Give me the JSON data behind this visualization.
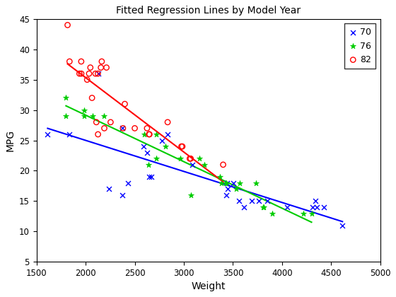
{
  "title": "Fitted Regression Lines by Model Year",
  "xlabel": "Weight",
  "ylabel": "MPG",
  "xlim": [
    1500,
    5000
  ],
  "ylim": [
    5,
    45
  ],
  "year70": {
    "weight": [
      1613,
      1835,
      2130,
      2234,
      2372,
      2375,
      2430,
      2587,
      2625,
      2648,
      2672,
      2774,
      2833,
      3086,
      3433,
      3436,
      3449,
      3504,
      3563,
      3609,
      3693,
      3761,
      3850,
      4054,
      4312,
      4341,
      4354,
      4425,
      4615
    ],
    "mpg": [
      26,
      26,
      36,
      17,
      27,
      16,
      18,
      24,
      23,
      19,
      19,
      25,
      26,
      21,
      16,
      18,
      17,
      18,
      15,
      14,
      15,
      15,
      15,
      14,
      14,
      15,
      14,
      14,
      11
    ],
    "color": "#0000FF",
    "marker": "x",
    "label": "70"
  },
  "year76": {
    "weight": [
      1800,
      1800,
      1985,
      1985,
      2070,
      2190,
      2600,
      2640,
      2720,
      2720,
      2815,
      2965,
      3070,
      3155,
      3210,
      3365,
      3380,
      3425,
      3430,
      3535,
      3570,
      3735,
      3810,
      3815,
      3900,
      4220,
      4300
    ],
    "mpg": [
      32,
      29,
      29,
      30,
      29,
      29,
      26,
      21,
      22,
      26,
      24,
      22,
      16,
      22,
      21,
      19,
      18,
      18,
      18,
      17,
      18,
      18,
      14,
      14,
      13,
      13,
      13
    ],
    "color": "#00CC00",
    "marker": "p",
    "label": "76"
  },
  "year82": {
    "weight": [
      1816,
      1836,
      1937,
      1955,
      1956,
      2015,
      2035,
      2048,
      2065,
      2100,
      2109,
      2124,
      2126,
      2155,
      2164,
      2190,
      2212,
      2254,
      2380,
      2399,
      2500,
      2625,
      2645,
      2650,
      2835,
      2975,
      2985,
      3060,
      3070,
      3400
    ],
    "mpg": [
      44,
      38,
      36,
      38,
      36,
      35,
      36,
      37,
      32,
      36,
      28,
      36,
      26,
      37,
      38,
      27,
      37,
      28,
      27,
      31,
      27,
      27,
      26,
      26,
      28,
      24,
      24,
      22,
      22,
      21
    ],
    "color": "#FF0000",
    "marker": "o",
    "label": "82"
  },
  "bg_color": "#FFFFFF",
  "legend_loc": "upper right",
  "xticks": [
    1500,
    2000,
    2500,
    3000,
    3500,
    4000,
    4500,
    5000
  ],
  "yticks": [
    5,
    10,
    15,
    20,
    25,
    30,
    35,
    40,
    45
  ]
}
